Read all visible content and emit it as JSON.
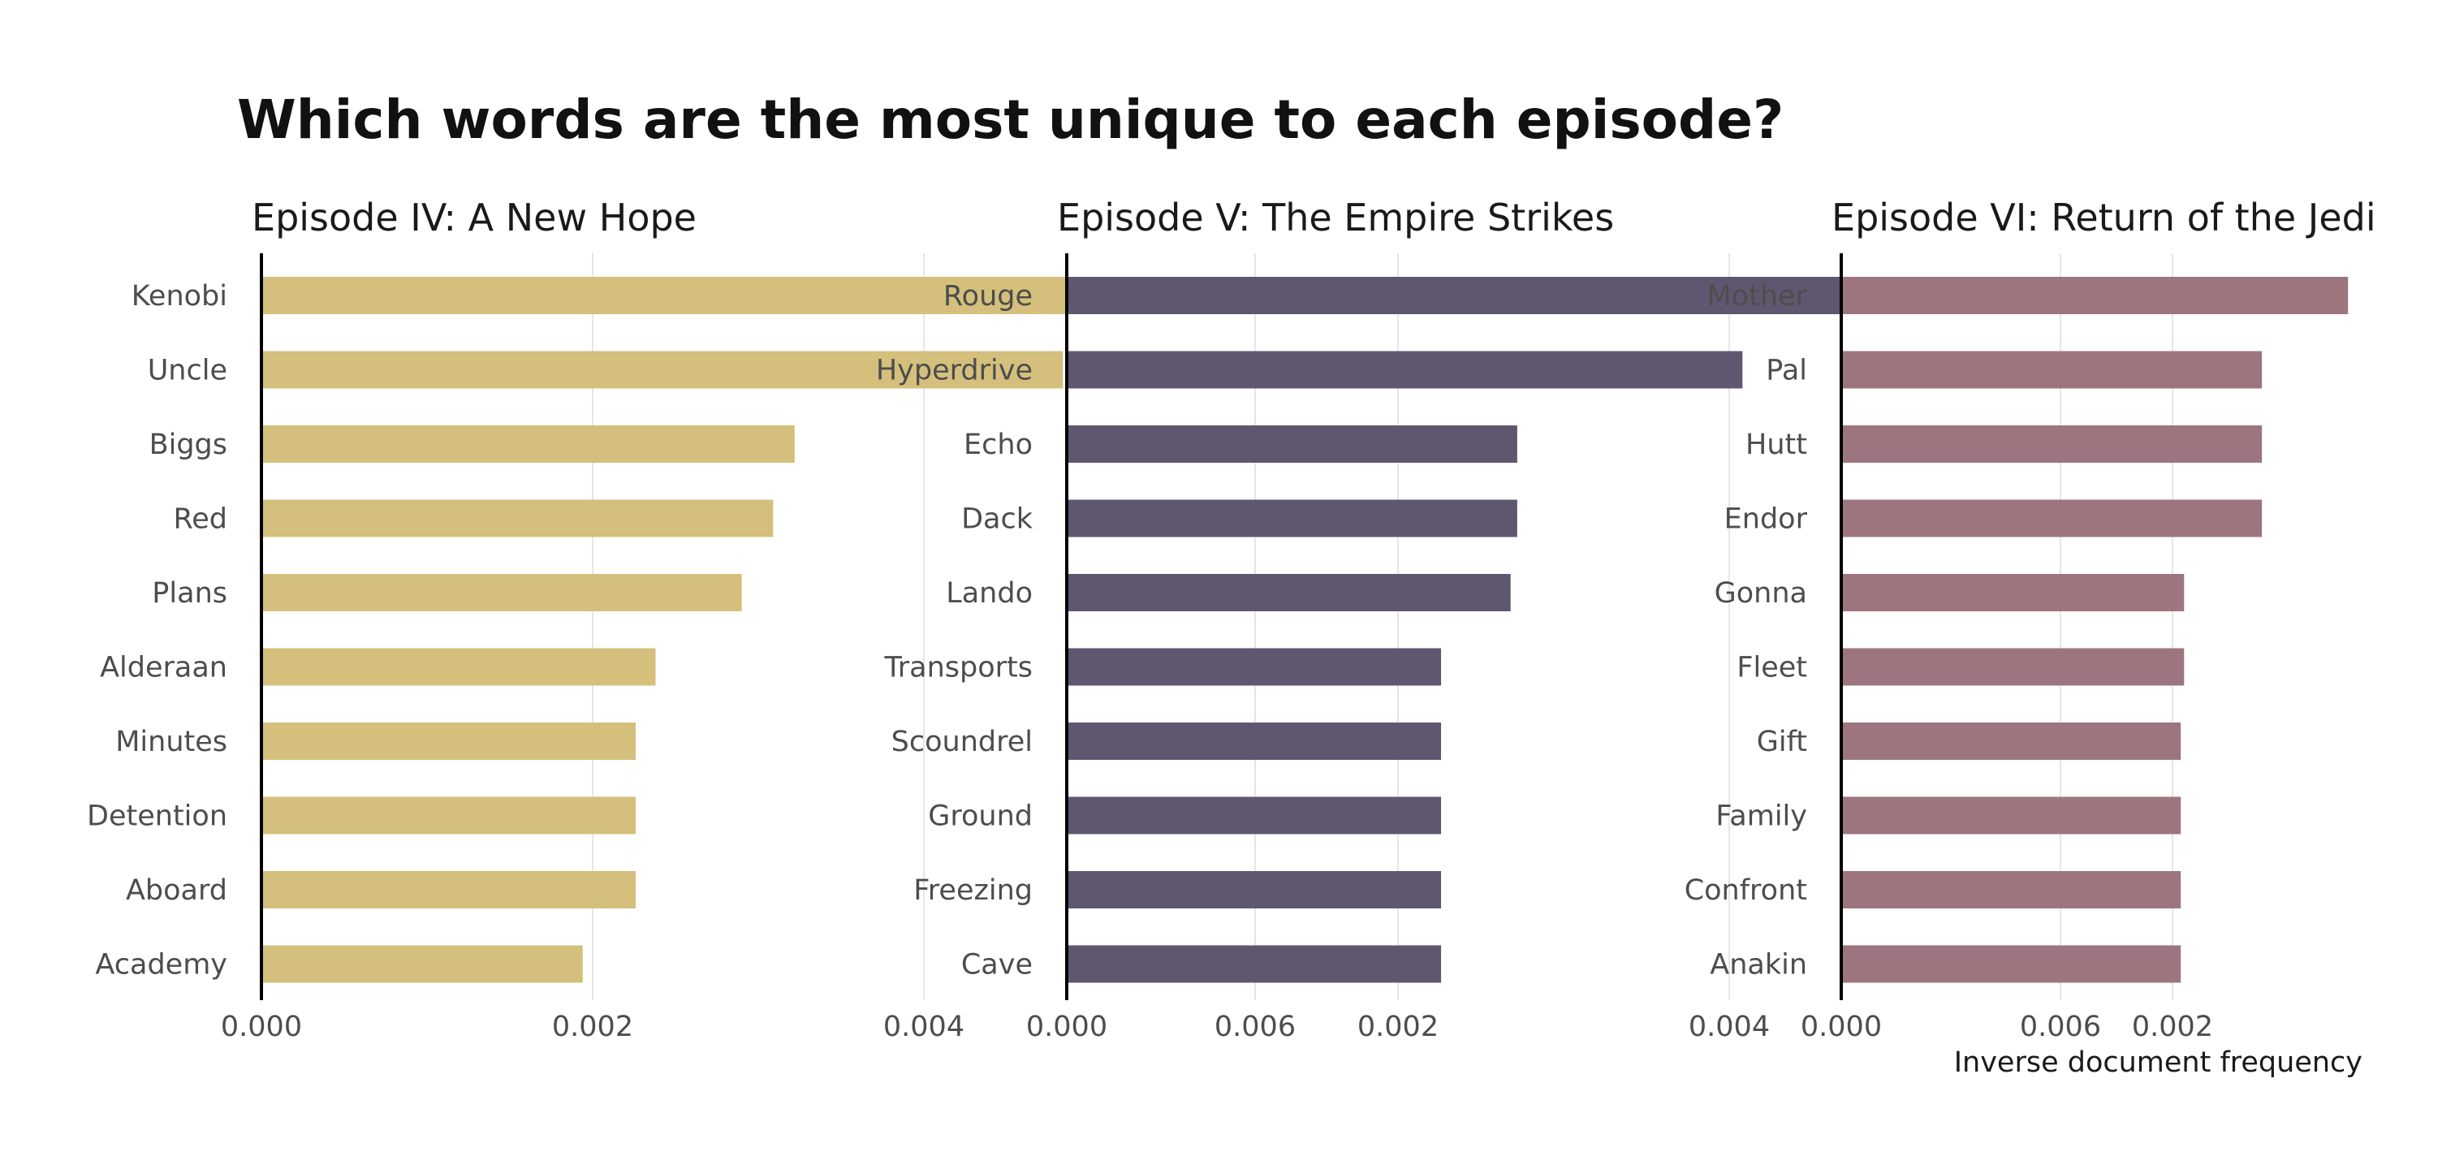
{
  "title": "Which words are the most unique to each episode?",
  "chart_data": [
    {
      "type": "bar",
      "orientation": "horizontal",
      "title": "Episode IV: A New Hope",
      "color": "#d4c07c",
      "categories": [
        "Kenobi",
        "Uncle",
        "Biggs",
        "Red",
        "Plans",
        "Alderaan",
        "Minutes",
        "Detention",
        "Aboard",
        "Academy"
      ],
      "values": [
        0.00612,
        0.00484,
        0.00322,
        0.00309,
        0.0029,
        0.00238,
        0.00226,
        0.00226,
        0.00226,
        0.00194
      ],
      "xlim": [
        0,
        0.0066
      ],
      "xticks": [
        "0.000",
        "0.002",
        "0.004",
        "0.006"
      ],
      "xlabel": "",
      "grid": true
    },
    {
      "type": "bar",
      "orientation": "horizontal",
      "title": "Episode V: The Empire Strikes",
      "color": "#5f576f",
      "categories": [
        "Rouge",
        "Hyperdrive",
        "Echo",
        "Dack",
        "Lando",
        "Transports",
        "Scoundrel",
        "Ground",
        "Freezing",
        "Cave"
      ],
      "values": [
        0.005,
        0.00408,
        0.00272,
        0.00272,
        0.00268,
        0.00226,
        0.00226,
        0.00226,
        0.00226,
        0.00226
      ],
      "xlim": [
        0,
        0.0066
      ],
      "xticks": [
        "0.000",
        "0.002",
        "0.004",
        "0.006"
      ],
      "xlabel": "",
      "grid": true
    },
    {
      "type": "bar",
      "orientation": "horizontal",
      "title": "Episode VI: Return of the Jedi",
      "color": "#9c757f",
      "categories": [
        "Mother",
        "Pal",
        "Hutt",
        "Endor",
        "Gonna",
        "Fleet",
        "Gift",
        "Family",
        "Confront",
        "Anakin"
      ],
      "values": [
        0.00306,
        0.00254,
        0.00254,
        0.00254,
        0.00207,
        0.00207,
        0.00205,
        0.00205,
        0.00205,
        0.00205
      ],
      "xlim": [
        0,
        0.0066
      ],
      "xticks": [
        "0.000",
        "0.002",
        "0.004",
        "0.006"
      ],
      "xlabel": "Inverse document frequency",
      "grid": true
    }
  ]
}
